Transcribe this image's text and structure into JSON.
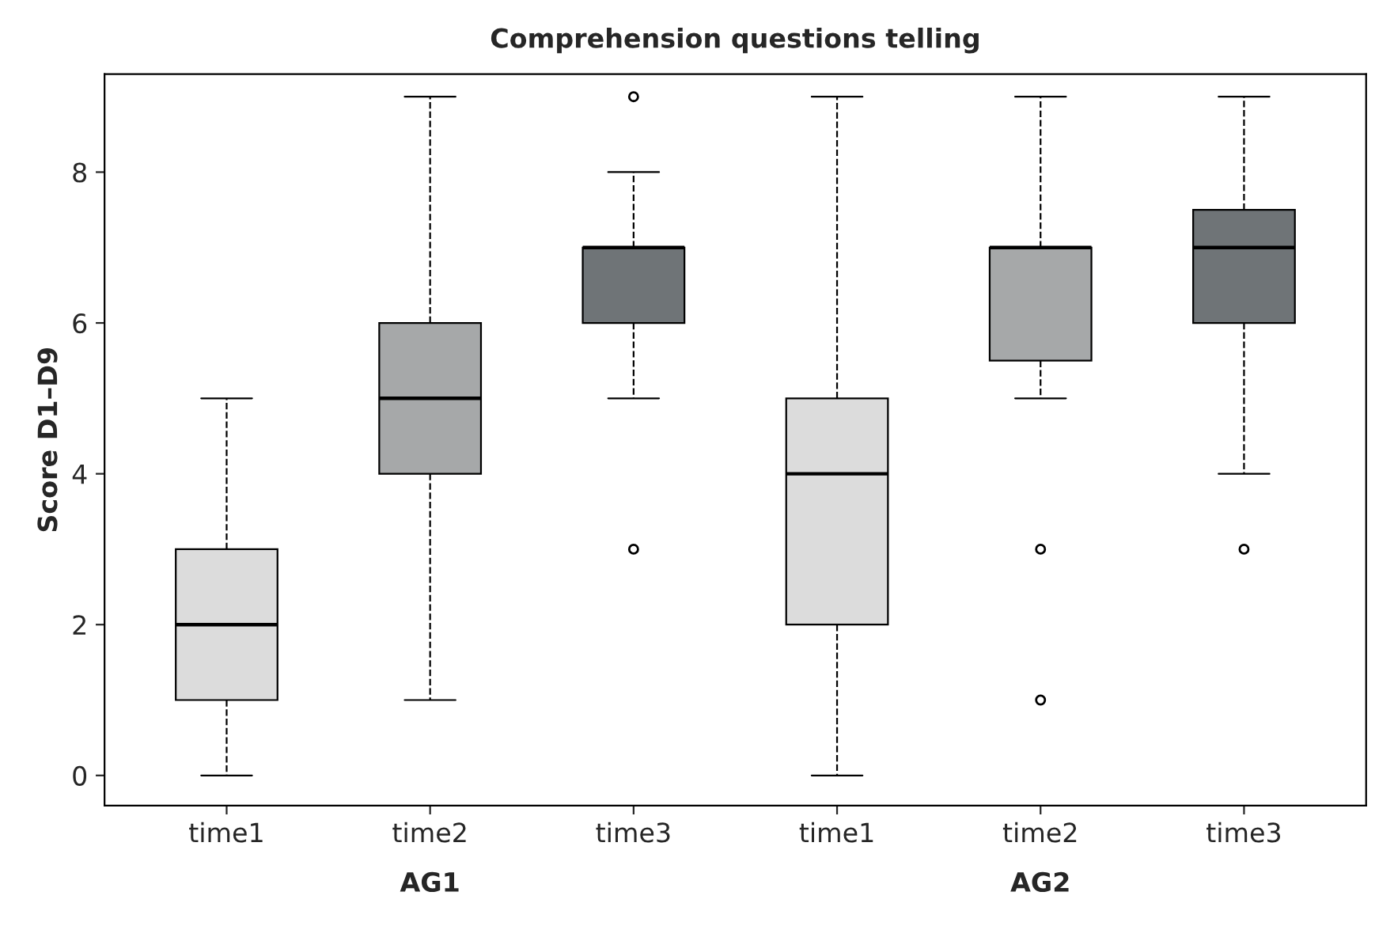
{
  "chart_data": {
    "type": "box",
    "title": "Comprehension questions telling",
    "ylabel": "Score D1–D9",
    "categories": [
      "time1",
      "time2",
      "time3",
      "time1",
      "time2",
      "time3"
    ],
    "boxes": [
      {
        "low": 0,
        "q1": 1,
        "median": 2,
        "q3": 3,
        "high": 5
      },
      {
        "low": 1,
        "q1": 4,
        "median": 5,
        "q3": 6,
        "high": 9
      },
      {
        "low": 5,
        "q1": 6,
        "median": 7,
        "q3": 7,
        "high": 8,
        "outliers": [
          3,
          9
        ]
      },
      {
        "low": 0,
        "q1": 2,
        "median": 4,
        "q3": 5,
        "high": 9
      },
      {
        "low": 5,
        "q1": 5.5,
        "median": 7,
        "q3": 7,
        "high": 9,
        "outliers": [
          3,
          1
        ]
      },
      {
        "low": 4,
        "q1": 6,
        "median": 7,
        "q3": 7.5,
        "high": 9,
        "outliers": [
          3
        ]
      }
    ],
    "colors": [
      "#dcdcdc",
      "#a6a8a9",
      "#6f7477",
      "#dcdcdc",
      "#a6a8a9",
      "#6f7477"
    ],
    "annotations": [
      "AG1",
      "AG2"
    ],
    "ylim": [
      -0.4,
      9.3
    ],
    "yticks": [
      0,
      2,
      4,
      6,
      8
    ],
    "grid": false,
    "legend": false
  }
}
